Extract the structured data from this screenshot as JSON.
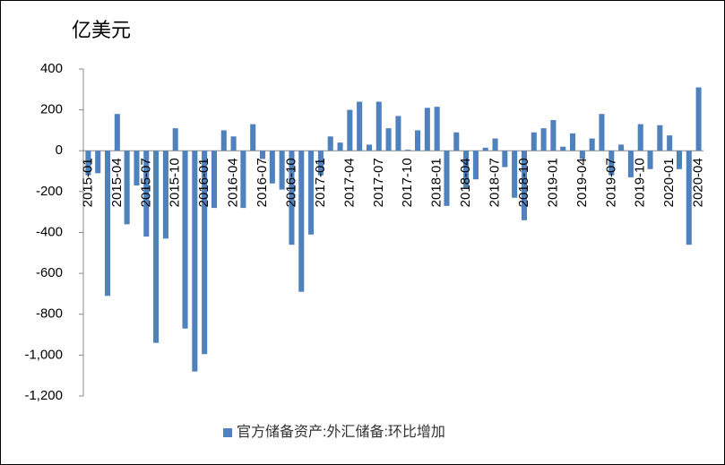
{
  "chart_data": {
    "type": "bar",
    "title": "亿美元",
    "categories": [
      "2015-01",
      null,
      null,
      "2015-04",
      null,
      null,
      "2015-07",
      null,
      null,
      "2015-10",
      null,
      null,
      "2016-01",
      null,
      null,
      "2016-04",
      null,
      null,
      "2016-07",
      null,
      null,
      "2016-10",
      null,
      null,
      "2017-01",
      null,
      null,
      "2017-04",
      null,
      null,
      "2017-07",
      null,
      null,
      "2017-10",
      null,
      null,
      "2018-01",
      null,
      null,
      "2018-04",
      null,
      null,
      "2018-07",
      null,
      null,
      "2018-10",
      null,
      null,
      "2019-01",
      null,
      null,
      "2019-04",
      null,
      null,
      "2019-07",
      null,
      null,
      "2019-10",
      null,
      null,
      "2020-01",
      null,
      null,
      "2020-04"
    ],
    "series": [
      {
        "name": "官方储备资产:外汇储备:环比增加",
        "color": "#4f81bd",
        "values": [
          -120,
          -110,
          -710,
          180,
          -360,
          -170,
          -420,
          -940,
          -430,
          110,
          -870,
          -1080,
          -995,
          -280,
          100,
          70,
          -280,
          130,
          -40,
          -160,
          -190,
          -460,
          -690,
          -410,
          -120,
          70,
          40,
          200,
          240,
          30,
          240,
          110,
          170,
          5,
          100,
          210,
          215,
          -270,
          90,
          -180,
          -140,
          15,
          60,
          -80,
          -230,
          -340,
          90,
          110,
          150,
          20,
          85,
          -40,
          60,
          180,
          -120,
          30,
          -130,
          130,
          -90,
          125,
          75,
          -90,
          -460,
          310
        ]
      }
    ],
    "ylim": [
      -1200,
      400
    ],
    "yticks": [
      {
        "value": -1200,
        "label": "-1,200"
      },
      {
        "value": -1000,
        "label": "-1,000"
      },
      -800,
      -600,
      -400,
      -200,
      0,
      200,
      400
    ],
    "legend": "bottom"
  }
}
